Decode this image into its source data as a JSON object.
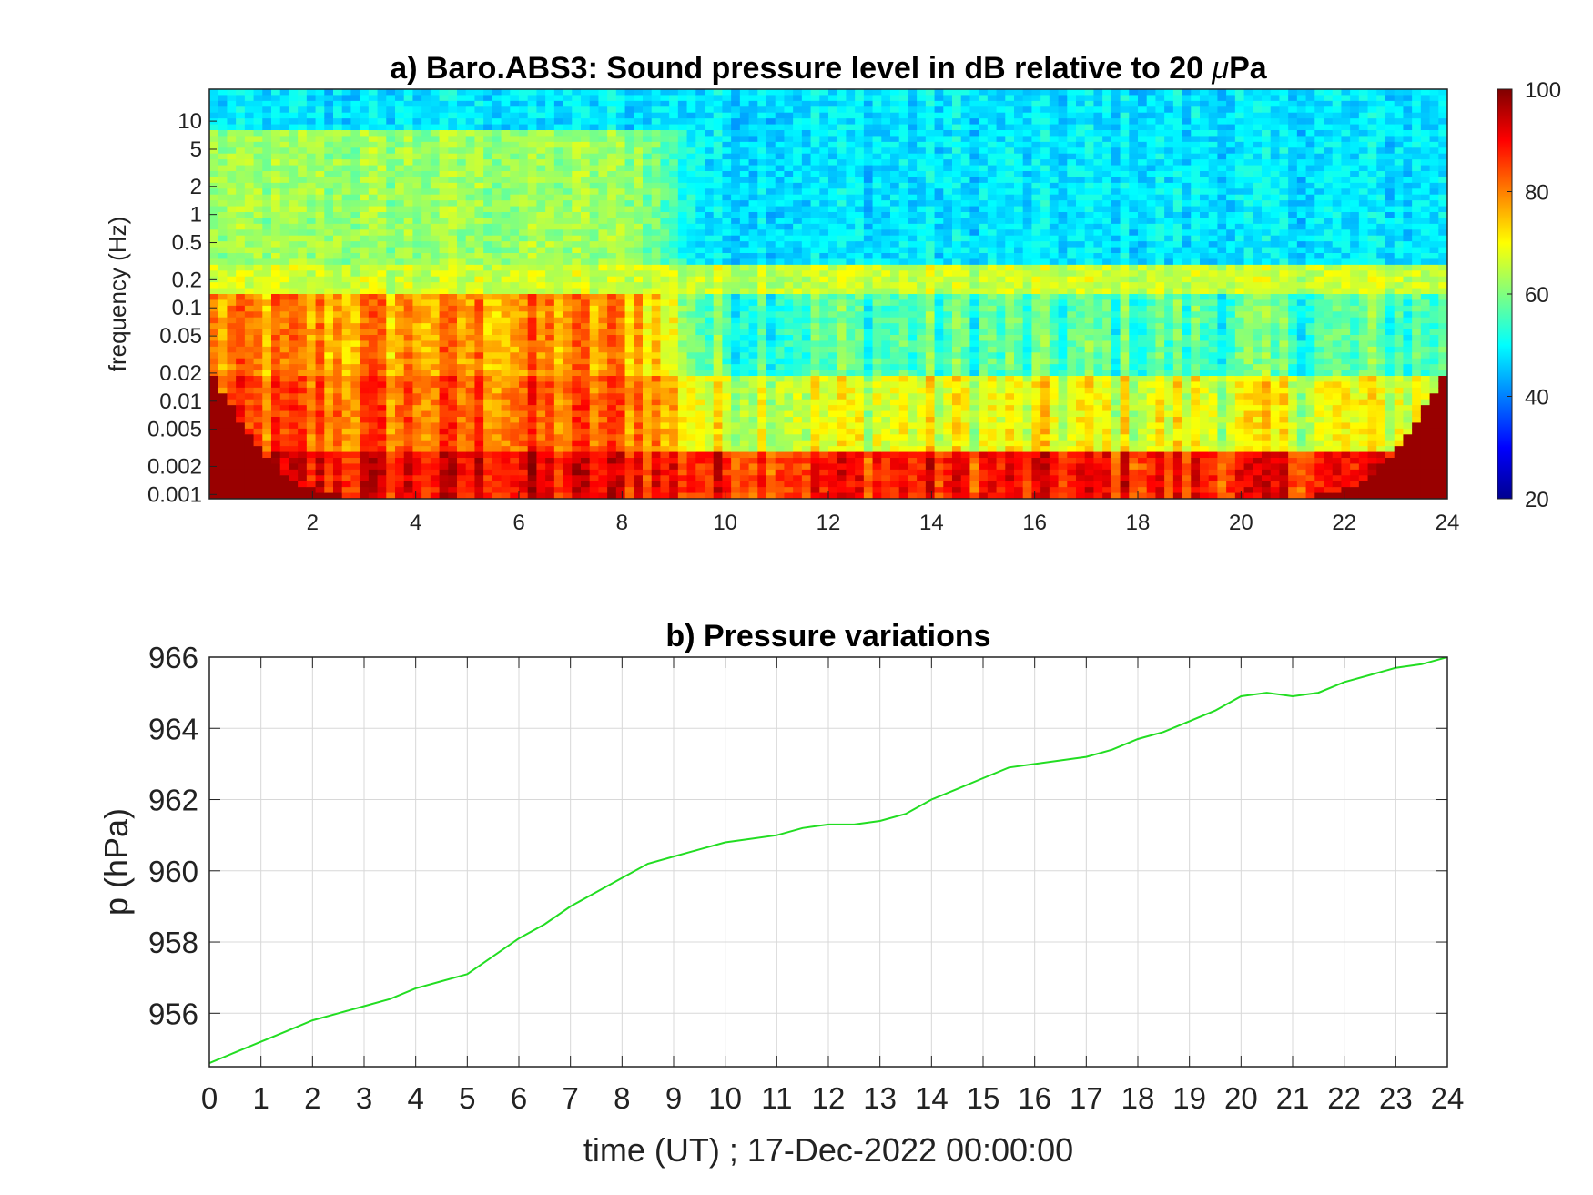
{
  "figure": {
    "background": "#ffffff"
  },
  "chart_data": [
    {
      "type": "heatmap",
      "title_pre": "a) Baro.ABS3: Sound pressure level in dB relative to 20 ",
      "title_mu": "μ",
      "title_post": "Pa",
      "title": "a) Baro.ABS3: Sound pressure level in dB relative to 20 μPa",
      "xlabel": "",
      "ylabel": "frequency (Hz)",
      "xlim": [
        0,
        24
      ],
      "ylim": [
        0.0009,
        22
      ],
      "yscale": "log",
      "xticks": [
        2,
        4,
        6,
        8,
        10,
        12,
        14,
        16,
        18,
        20,
        22,
        24
      ],
      "xticklabels": [
        "2",
        "4",
        "6",
        "8",
        "10",
        "12",
        "14",
        "16",
        "18",
        "20",
        "22",
        "24"
      ],
      "yticks": [
        0.001,
        0.002,
        0.005,
        0.01,
        0.02,
        0.05,
        0.1,
        0.2,
        0.5,
        1,
        2,
        5,
        10
      ],
      "yticklabels": [
        "0.001",
        "0.002",
        "0.005",
        "0.01",
        "0.02",
        "0.05",
        "0.1",
        "0.2",
        "0.5",
        "1",
        "2",
        "5",
        "10"
      ],
      "colormap": "jet",
      "colorbar": {
        "range": [
          20,
          100
        ],
        "ticks": [
          20,
          40,
          60,
          80,
          100
        ],
        "ticklabels": [
          "20",
          "40",
          "60",
          "80",
          "100"
        ]
      },
      "approx_levels_db": {
        "description_bands_hz": [
          "0.001-0.003",
          "0.003-0.02",
          "0.02-0.15",
          "0.15-0.3",
          "0.3-8",
          "8-22"
        ],
        "hours_0_9": [
          90,
          82,
          78,
          66,
          62,
          48
        ],
        "hours_9_24": [
          88,
          68,
          56,
          66,
          48,
          48
        ]
      },
      "grid": false,
      "legend": "none"
    },
    {
      "type": "line",
      "title": "b) Pressure variations",
      "xlabel": "time (UT) ; 17-Dec-2022 00:00:00",
      "ylabel": "p (hPa)",
      "xlim": [
        0,
        24
      ],
      "ylim": [
        954.5,
        966
      ],
      "xticks": [
        0,
        1,
        2,
        3,
        4,
        5,
        6,
        7,
        8,
        9,
        10,
        11,
        12,
        13,
        14,
        15,
        16,
        17,
        18,
        19,
        20,
        21,
        22,
        23,
        24
      ],
      "xticklabels": [
        "0",
        "1",
        "2",
        "3",
        "4",
        "5",
        "6",
        "7",
        "8",
        "9",
        "10",
        "11",
        "12",
        "13",
        "14",
        "15",
        "16",
        "17",
        "18",
        "19",
        "20",
        "21",
        "22",
        "23",
        "24"
      ],
      "yticks": [
        956,
        958,
        960,
        962,
        964,
        966
      ],
      "yticklabels": [
        "956",
        "958",
        "960",
        "962",
        "964",
        "966"
      ],
      "grid": true,
      "legend": "none",
      "line_color": "#22dd22",
      "x": [
        0,
        0.5,
        1,
        1.5,
        2,
        2.5,
        3,
        3.5,
        4,
        4.5,
        5,
        5.5,
        6,
        6.5,
        7,
        7.5,
        8,
        8.5,
        9,
        9.5,
        10,
        10.5,
        11,
        11.5,
        12,
        12.5,
        13,
        13.5,
        14,
        14.5,
        15,
        15.5,
        16,
        16.5,
        17,
        17.5,
        18,
        18.5,
        19,
        19.5,
        20,
        20.5,
        21,
        21.5,
        22,
        22.5,
        23,
        23.5,
        24
      ],
      "y": [
        954.6,
        954.9,
        955.2,
        955.5,
        955.8,
        956.0,
        956.2,
        956.4,
        956.7,
        956.9,
        957.1,
        957.6,
        958.1,
        958.5,
        959.0,
        959.4,
        959.8,
        960.2,
        960.4,
        960.6,
        960.8,
        960.9,
        961.0,
        961.2,
        961.3,
        961.3,
        961.4,
        961.6,
        962.0,
        962.3,
        962.6,
        962.9,
        963.0,
        963.1,
        963.2,
        963.4,
        963.7,
        963.9,
        964.2,
        964.5,
        964.9,
        965.0,
        964.9,
        965.0,
        965.3,
        965.5,
        965.7,
        965.8,
        966.0
      ]
    }
  ]
}
